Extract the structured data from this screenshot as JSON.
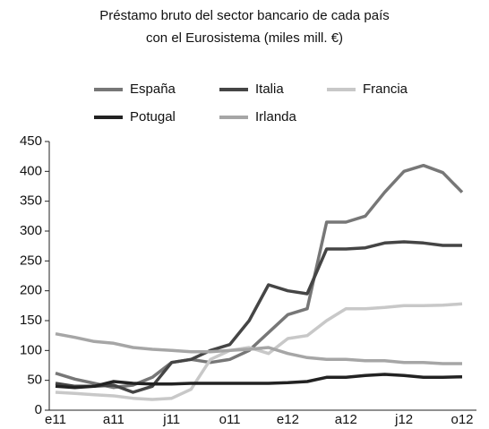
{
  "chart_data": {
    "type": "line",
    "title": [
      "Préstamo bruto del sector bancario de cada país",
      "con el Eurosistema (miles mill. €)"
    ],
    "categories": [
      "e11",
      null,
      null,
      "a11",
      null,
      null,
      "j11",
      null,
      null,
      "o11",
      null,
      null,
      "e12",
      null,
      null,
      "a12",
      null,
      null,
      "j12",
      null,
      null,
      "o12"
    ],
    "series": [
      {
        "name": "España",
        "color": "#777777",
        "values": [
          62,
          52,
          45,
          38,
          42,
          55,
          80,
          85,
          80,
          85,
          100,
          130,
          160,
          170,
          315,
          315,
          325,
          365,
          400,
          410,
          398,
          365
        ]
      },
      {
        "name": "Italia",
        "color": "#454545",
        "values": [
          45,
          40,
          40,
          42,
          30,
          40,
          80,
          85,
          100,
          110,
          150,
          210,
          200,
          195,
          270,
          270,
          272,
          280,
          282,
          280,
          276,
          276
        ]
      },
      {
        "name": "Francia",
        "color": "#c8c8c8",
        "values": [
          30,
          28,
          26,
          24,
          20,
          18,
          20,
          35,
          85,
          100,
          105,
          95,
          120,
          125,
          150,
          170,
          170,
          172,
          175,
          175,
          176,
          178
        ]
      },
      {
        "name": "Potugal",
        "color": "#222222",
        "values": [
          40,
          38,
          40,
          48,
          45,
          44,
          44,
          45,
          45,
          45,
          45,
          45,
          46,
          48,
          55,
          55,
          58,
          60,
          58,
          55,
          55,
          56
        ]
      },
      {
        "name": "Irlanda",
        "color": "#a6a6a6",
        "values": [
          128,
          122,
          115,
          112,
          105,
          102,
          100,
          98,
          98,
          100,
          102,
          105,
          95,
          88,
          85,
          85,
          83,
          83,
          80,
          80,
          78,
          78
        ]
      }
    ],
    "ylim": [
      0,
      450
    ],
    "yticks": [
      0,
      50,
      100,
      150,
      200,
      250,
      300,
      350,
      400,
      450
    ],
    "grid": false
  }
}
